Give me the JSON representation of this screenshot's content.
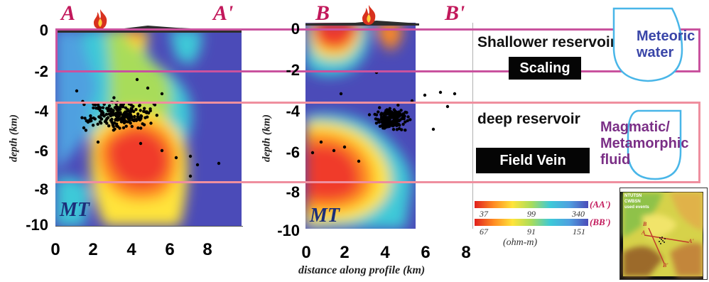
{
  "profiles": {
    "aa": {
      "start": "A",
      "end": "A'"
    },
    "bb": {
      "start": "B",
      "end": "B'"
    }
  },
  "y_ticks": [
    "0",
    "-2",
    "-4",
    "-6",
    "-8",
    "-10"
  ],
  "x_ticks_left": [
    "0",
    "2",
    "4",
    "6",
    "8"
  ],
  "x_ticks_right": [
    "0",
    "2",
    "4",
    "6",
    "8"
  ],
  "y_axis_label": "depth (km)",
  "x_axis_label": "distance along profile (km)",
  "method_label": "MT",
  "reservoirs": {
    "shallow": "Shallower reservoir",
    "shallow_box": "Scaling",
    "deep": "deep reservoir",
    "deep_box": "Field Vein"
  },
  "fluids": {
    "meteoric": "Meteoric water",
    "magmatic": "Magmatic/ Metamorphic fluid"
  },
  "colorbar": {
    "aa_values": [
      "37",
      "99",
      "340"
    ],
    "aa_name": "(AA')",
    "bb_values": [
      "67",
      "91",
      "151"
    ],
    "bb_name": "(BB')",
    "unit": "(ohm-m)"
  },
  "map_legend": [
    "NTUTSN",
    "CWBSN",
    "used events"
  ],
  "map_markers": [
    "A",
    "A'",
    "B",
    "B'"
  ],
  "colors": {
    "shallow_band": "#c9529e",
    "deep_band": "#ef8f9f",
    "meteoric_text": "#3a46a8",
    "magmatic_text": "#7b2f86",
    "drop_outline": "#49b6e8"
  }
}
